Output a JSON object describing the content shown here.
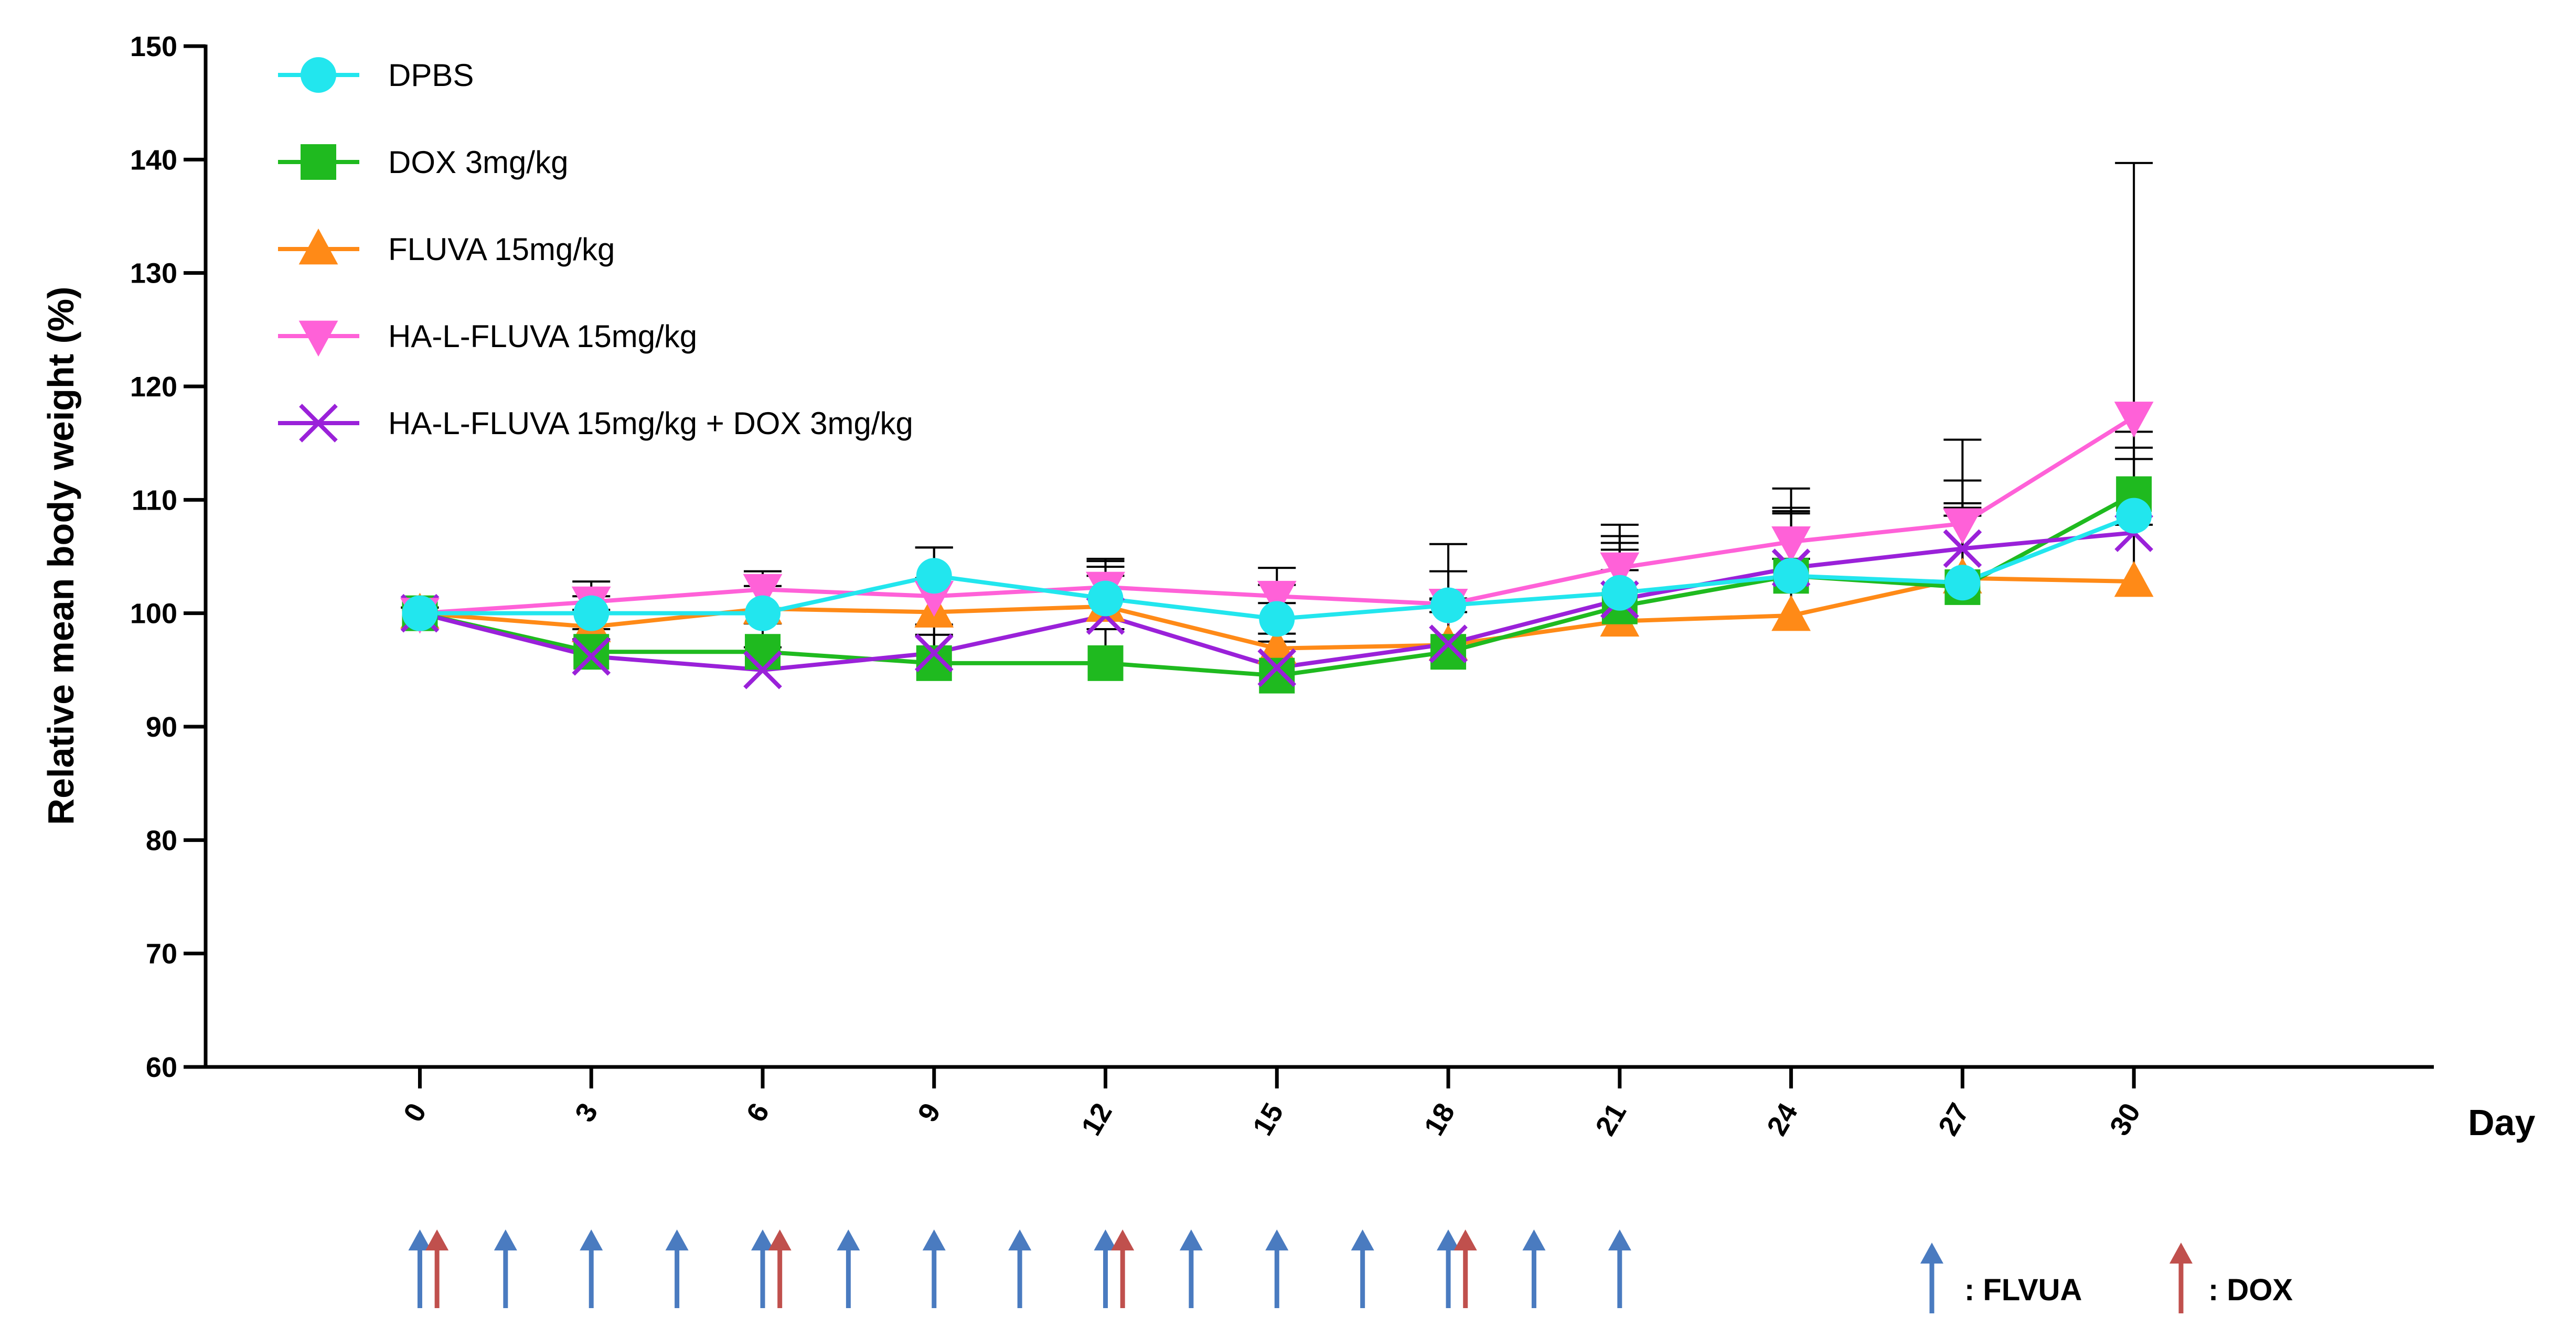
{
  "chart_data": {
    "type": "line",
    "xlabel": "Day",
    "ylabel": "Relative mean body weight (%)",
    "xlim": [
      -3.75,
      35.25
    ],
    "ylim": [
      60,
      150
    ],
    "x": [
      0,
      3,
      6,
      9,
      12,
      15,
      18,
      21,
      24,
      27,
      30
    ],
    "x_tick_labels": [
      "0",
      "3",
      "6",
      "9",
      "12",
      "15",
      "18",
      "21",
      "24",
      "27",
      "30"
    ],
    "y_ticks": [
      60,
      70,
      80,
      90,
      100,
      110,
      120,
      130,
      140,
      150
    ],
    "y_tick_labels": [
      "60",
      "70",
      "80",
      "90",
      "100",
      "110",
      "120",
      "130",
      "140",
      "150"
    ],
    "legend_position": "top-left",
    "series": [
      {
        "name": "DPBS",
        "color": "#22e6ee",
        "marker": "circle",
        "values": [
          100,
          100,
          100,
          103.3,
          101.3,
          99.5,
          100.7,
          101.8,
          103.3,
          102.7,
          108.6
        ],
        "errors": [
          0.5,
          1.5,
          2.0,
          2.5,
          3.5,
          3.0,
          3.0,
          5.0,
          5.5,
          7.0,
          6.0
        ]
      },
      {
        "name": "DOX 3mg/kg",
        "color": "#1fba1f",
        "marker": "square",
        "values": [
          100,
          96.6,
          96.6,
          95.6,
          95.6,
          94.5,
          96.6,
          100.6,
          103.3,
          102.3,
          110.5
        ],
        "errors": [
          0.5,
          2.0,
          2.5,
          2.5,
          3.0,
          3.0,
          3.5,
          5.0,
          6.0,
          7.0,
          5.5
        ]
      },
      {
        "name": "FLUVA 15mg/kg",
        "color": "#ff8a17",
        "marker": "triangle-up",
        "values": [
          100,
          98.8,
          100.4,
          100.1,
          100.6,
          96.9,
          97.2,
          99.3,
          99.8,
          103.1,
          102.8
        ],
        "errors": [
          0.5,
          1.5,
          2.0,
          3.0,
          3.5,
          4.0,
          4.0,
          4.5,
          5.0,
          5.5,
          5.0
        ]
      },
      {
        "name": "HA-L-FLUVA 15mg/kg",
        "color": "#ff61d8",
        "marker": "triangle-down",
        "values": [
          100,
          101,
          102.1,
          101.5,
          102.3,
          101.5,
          100.8,
          104,
          106.3,
          107.9,
          117.3
        ],
        "errors": [
          0.5,
          1.8,
          1.6,
          4.3,
          2.3,
          2.5,
          5.3,
          3.8,
          4.7,
          7.4,
          22.4
        ]
      },
      {
        "name": "HA-L-FLUVA 15mg/kg + DOX 3mg/kg",
        "color": "#9a21d9",
        "marker": "x",
        "values": [
          100,
          96.2,
          95,
          96.5,
          99.8,
          95.2,
          97.3,
          101.2,
          104,
          105.7,
          107.1
        ],
        "errors": [
          0.5,
          1.5,
          2.0,
          2.5,
          3.5,
          3.0,
          4.0,
          5.0,
          5.0,
          6.0,
          6.5
        ]
      }
    ],
    "dosing": {
      "fluva_days": [
        0,
        1.5,
        3,
        4.5,
        6,
        7.5,
        9,
        10.5,
        12,
        13.5,
        15,
        16.5,
        18,
        19.5,
        21
      ],
      "dox_days": [
        0.3,
        6.3,
        12.3,
        18.3
      ],
      "fluva_color": "#4a7bc0",
      "dox_color": "#c0504d",
      "legend_fluva_label": ": FLVUA",
      "legend_dox_label": ": DOX"
    }
  }
}
